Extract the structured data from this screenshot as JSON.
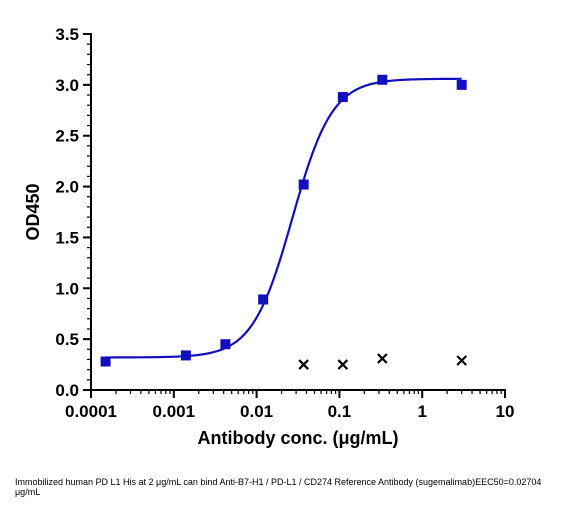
{
  "chart_data": {
    "type": "scatter",
    "xscale": "log",
    "xlim": [
      0.0001,
      10
    ],
    "ylim": [
      0,
      3.5
    ],
    "xlabel": "Antibody conc. (μg/mL)",
    "ylabel": "OD450",
    "x_ticks": [
      0.0001,
      0.001,
      0.01,
      0.1,
      1,
      10
    ],
    "x_tick_labels": [
      "0.0001",
      "0.001",
      "0.01",
      "0.1",
      "1",
      "10"
    ],
    "y_ticks": [
      0,
      0.5,
      1,
      1.5,
      2,
      2.5,
      3,
      3.5
    ],
    "y_tick_labels": [
      "0.0",
      "0.5",
      "1.0",
      "1.5",
      "2.0",
      "2.5",
      "3.0",
      "3.5"
    ],
    "series": [
      {
        "marker": "square",
        "color": "#1010c0",
        "x": [
          0.00015,
          0.0014,
          0.0042,
          0.012,
          0.037,
          0.11,
          0.33,
          3.0
        ],
        "y": [
          0.28,
          0.34,
          0.45,
          0.89,
          2.02,
          2.88,
          3.05,
          3.0
        ]
      },
      {
        "marker": "x",
        "color": "#000000",
        "x": [
          0.037,
          0.11,
          0.33,
          3.0
        ],
        "y": [
          0.25,
          0.25,
          0.31,
          0.29
        ]
      }
    ],
    "fit": {
      "color": "#1010c0",
      "bottom": 0.32,
      "top": 3.06,
      "ec50": 0.02704,
      "hill": 1.8
    },
    "caption": "Immobilized human PD L1 His at 2  μg/mL can bind  Anti-B7-H1 / PD-L1 / CD274 Reference Antibody (sugemalimab)EEC50=0.02704 μg/mL"
  }
}
